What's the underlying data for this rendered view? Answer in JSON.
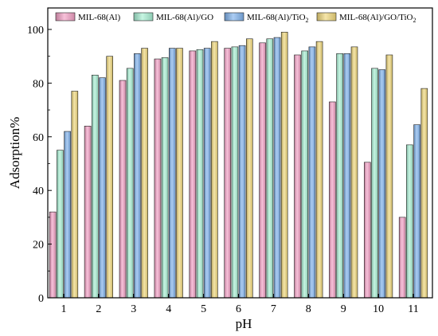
{
  "chart_data": {
    "type": "bar",
    "xlabel": "pH",
    "ylabel": "Adsorption%",
    "ylim": [
      0,
      108
    ],
    "yticks": [
      0,
      20,
      40,
      60,
      80,
      100
    ],
    "categories": [
      "1",
      "2",
      "3",
      "4",
      "5",
      "6",
      "7",
      "8",
      "9",
      "10",
      "11"
    ],
    "grid": false,
    "legend_position": "top",
    "series": [
      {
        "name": "MIL-68(Al)",
        "name_main": "MIL-68(Al)",
        "name_sub": "",
        "name_suffix": "",
        "color": "#F2A0C4",
        "values": [
          32.0,
          64.0,
          81.0,
          89.0,
          92.0,
          93.0,
          95.0,
          90.5,
          73.0,
          50.5,
          30.0
        ]
      },
      {
        "name": "MIL-68(Al)/GO",
        "name_main": "MIL-68(Al)/GO",
        "name_sub": "",
        "name_suffix": "",
        "color": "#A7EFD3",
        "values": [
          55.0,
          83.0,
          85.5,
          89.5,
          92.5,
          93.5,
          96.5,
          92.0,
          91.0,
          85.5,
          57.0
        ]
      },
      {
        "name": "MIL-68(Al)/TiO2",
        "name_main": "MIL-68(Al)/TiO",
        "name_sub": "2",
        "name_suffix": "",
        "color": "#7FB2EC",
        "values": [
          62.0,
          82.0,
          91.0,
          93.0,
          93.0,
          94.0,
          97.0,
          93.5,
          91.0,
          85.0,
          64.5
        ]
      },
      {
        "name": "MIL-68(Al)/GO/TiO2",
        "name_main": "MIL-68(Al)/GO/TiO",
        "name_sub": "2",
        "name_suffix": "",
        "color": "#F0D77A",
        "values": [
          77.0,
          90.0,
          93.0,
          93.0,
          95.5,
          96.5,
          99.0,
          95.5,
          93.5,
          90.5,
          78.0
        ]
      }
    ]
  }
}
